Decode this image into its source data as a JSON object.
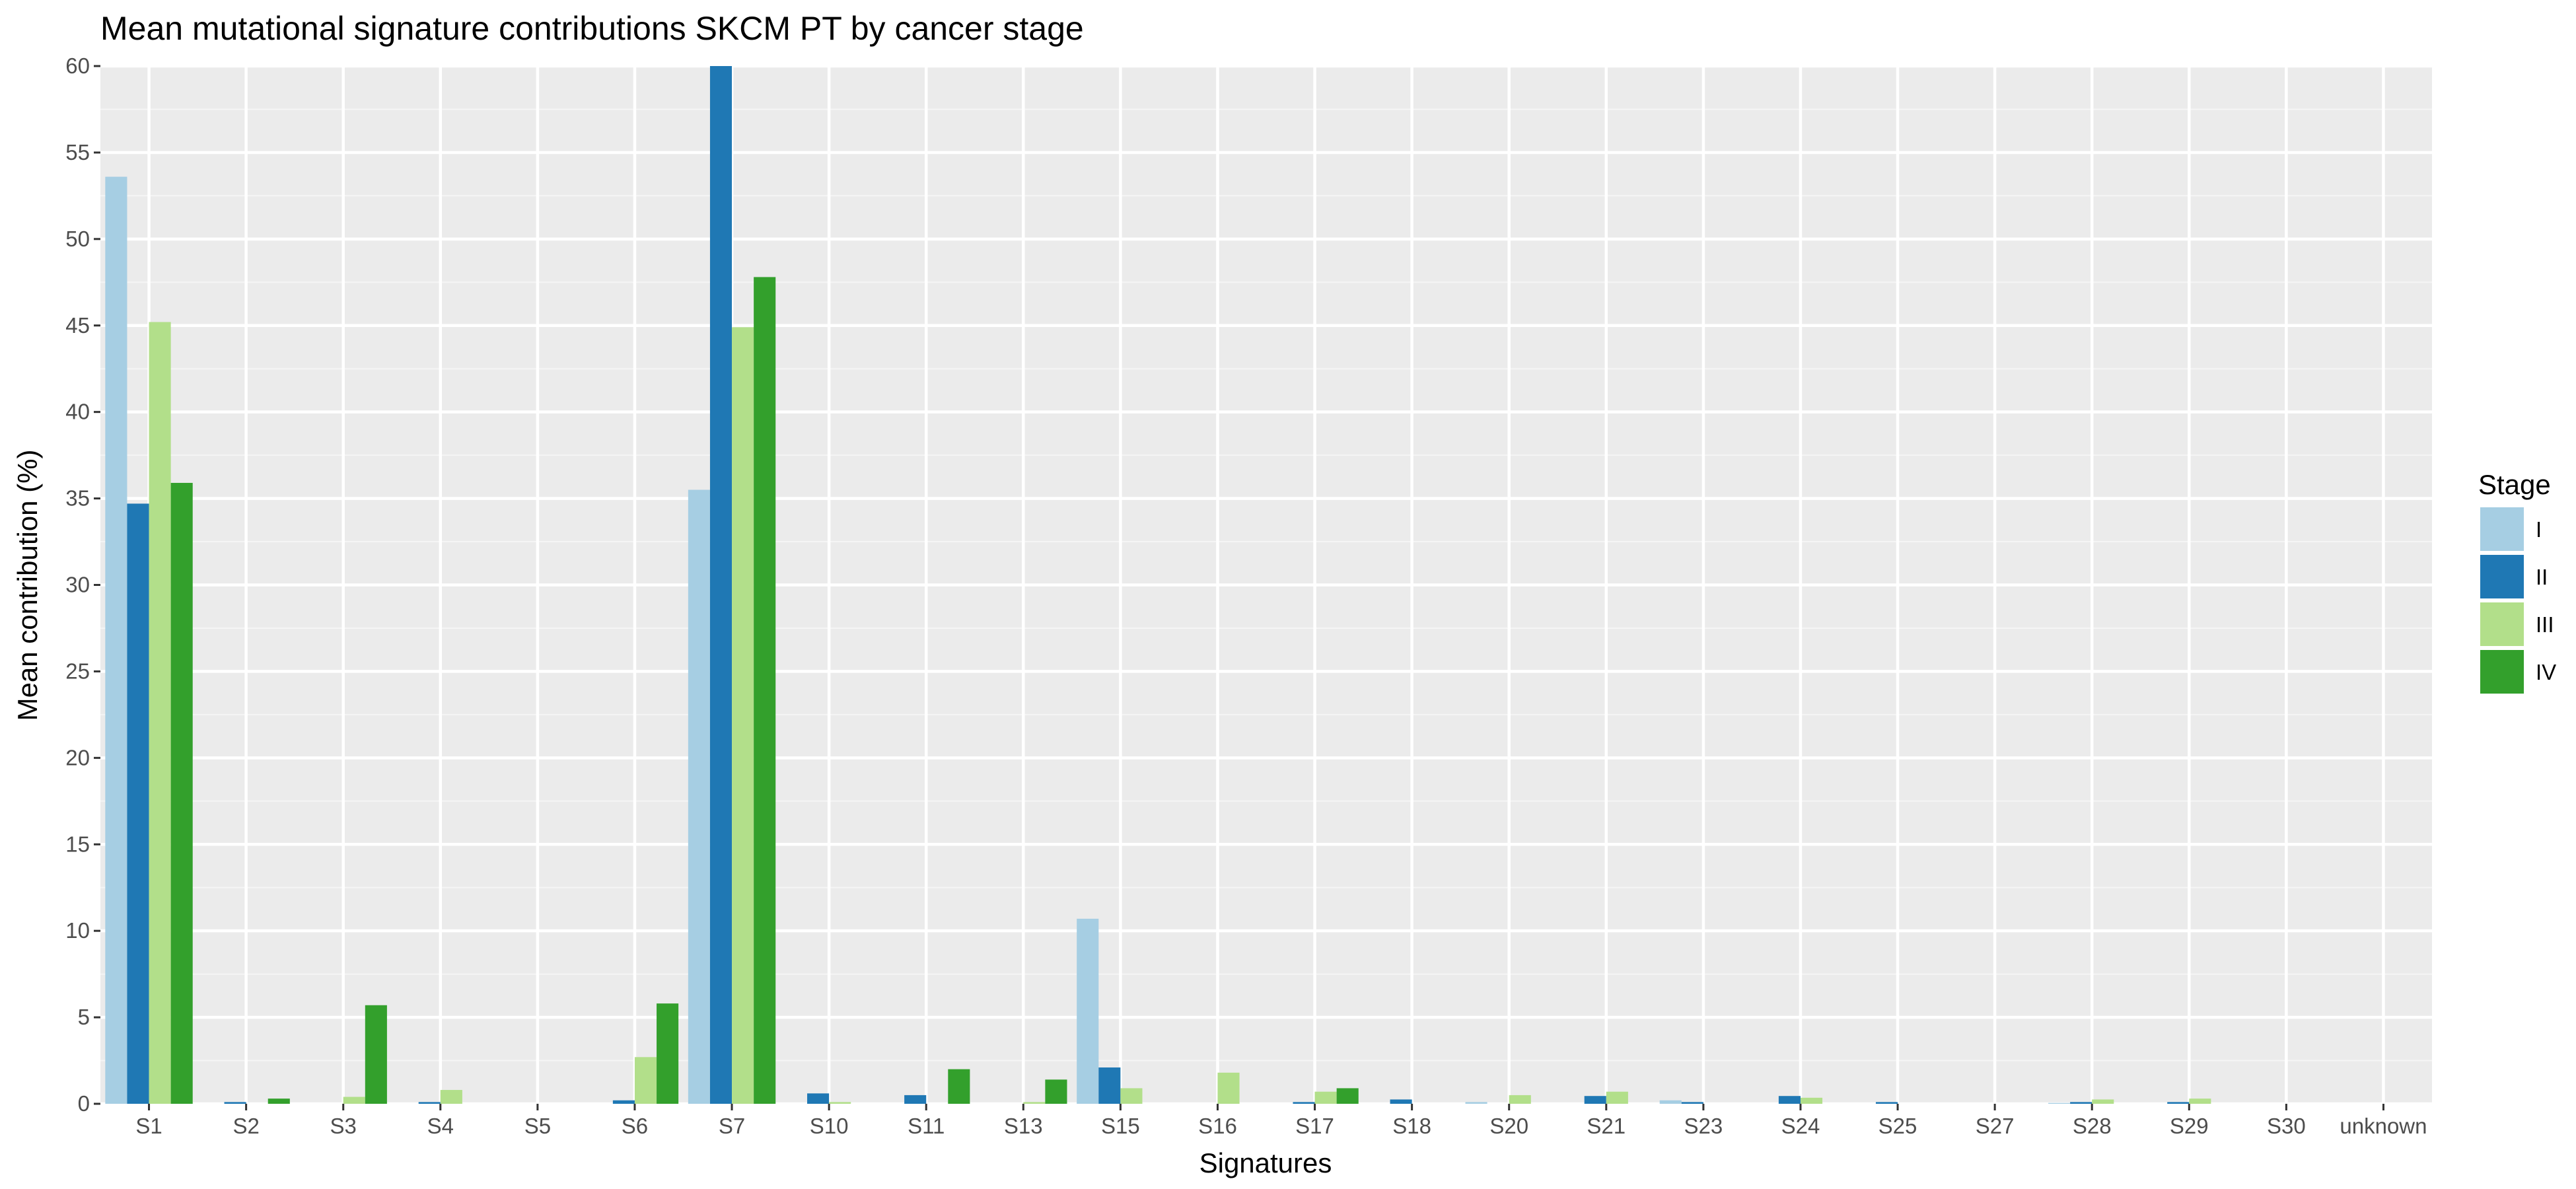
{
  "chart_data": {
    "type": "bar",
    "title": "Mean mutational signature contributions SKCM PT by cancer stage",
    "xlabel": "Signatures",
    "ylabel": "Mean contribution (%)",
    "ylim": [
      0,
      60
    ],
    "yticks": [
      0,
      5,
      10,
      15,
      20,
      25,
      30,
      35,
      40,
      45,
      50,
      55,
      60
    ],
    "grid": true,
    "legend": {
      "title": "Stage",
      "placement": "right"
    },
    "categories": [
      "S1",
      "S2",
      "S3",
      "S4",
      "S5",
      "S6",
      "S7",
      "S10",
      "S11",
      "S13",
      "S15",
      "S16",
      "S17",
      "S18",
      "S20",
      "S21",
      "S23",
      "S24",
      "S25",
      "S27",
      "S28",
      "S29",
      "S30",
      "unknown"
    ],
    "series": [
      {
        "name": "I",
        "color": "#a6cee3",
        "values": [
          53.6,
          0,
          0,
          0,
          0,
          0,
          35.5,
          0,
          0,
          0,
          10.7,
          0,
          0,
          0,
          0.1,
          0,
          0.2,
          0,
          0,
          0,
          0.05,
          0,
          0,
          0
        ]
      },
      {
        "name": "II",
        "color": "#1f78b4",
        "values": [
          34.7,
          0.1,
          0,
          0.1,
          0,
          0.2,
          60.0,
          0.6,
          0.5,
          0,
          2.1,
          0,
          0.1,
          0.25,
          0,
          0.45,
          0.1,
          0.45,
          0.1,
          0,
          0.1,
          0.1,
          0,
          0
        ]
      },
      {
        "name": "III",
        "color": "#b2df8a",
        "values": [
          45.2,
          0,
          0.4,
          0.8,
          0,
          2.7,
          44.9,
          0.1,
          0,
          0.1,
          0.9,
          1.8,
          0.7,
          0,
          0.5,
          0.7,
          0,
          0.35,
          0,
          0,
          0.25,
          0.3,
          0,
          0
        ]
      },
      {
        "name": "IV",
        "color": "#33a02c",
        "values": [
          35.9,
          0.3,
          5.7,
          0,
          0,
          5.8,
          47.8,
          0,
          2.0,
          1.4,
          0,
          0,
          0.9,
          0,
          0,
          0,
          0,
          0,
          0,
          0,
          0,
          0,
          0,
          0
        ]
      }
    ]
  }
}
